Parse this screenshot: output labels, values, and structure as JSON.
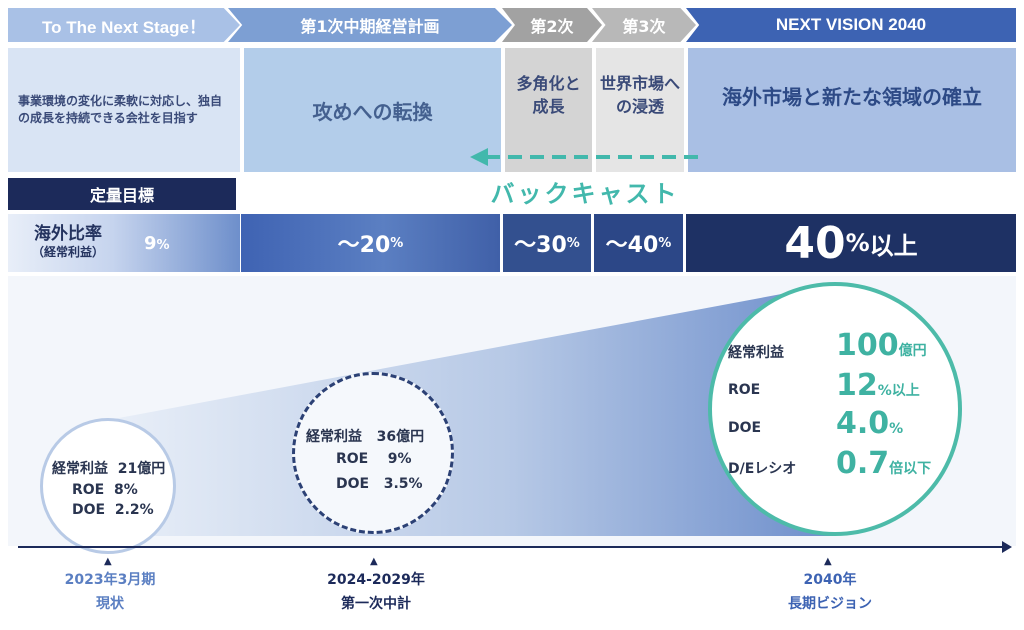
{
  "header": {
    "stage1": "To The Next Stage！",
    "stage2": "第1次中期経営計画",
    "stage3": "第2次",
    "stage4": "第3次",
    "stage5": "NEXT VISION 2040"
  },
  "descriptions": {
    "current": "事業環境の変化に柔軟に対応し、独自の成長を持続できる会社を目指す",
    "plan1": "攻めへの転換",
    "plan2": "多角化と成長",
    "plan3": "世界市場への浸透",
    "vision": "海外市場と新たな領域の確立"
  },
  "backcast": "バックキャスト",
  "quant_header": "定量目標",
  "overseas_ratio": {
    "label": "海外比率",
    "sub": "（経常利益）",
    "current": "9",
    "plan1": "～20",
    "plan2": "～30",
    "plan3": "～40",
    "vision": "40",
    "unit": "%",
    "vision_suffix": "以上"
  },
  "circles": {
    "current": {
      "profit_label": "経常利益",
      "profit": "21億円",
      "roe_label": "ROE",
      "roe": "8%",
      "doe_label": "DOE",
      "doe": "2.2%"
    },
    "plan1": {
      "profit_label": "経常利益",
      "profit": "36億円",
      "roe_label": "ROE",
      "roe": "9%",
      "doe_label": "DOE",
      "doe": "3.5%"
    },
    "vision": {
      "profit_label": "経常利益",
      "profit": "100",
      "profit_unit": "億円",
      "roe_label": "ROE",
      "roe": "12",
      "roe_unit": "%以上",
      "doe_label": "DOE",
      "doe": "4.0",
      "doe_unit": "%",
      "de_label": "D/Eレシオ",
      "de": "0.7",
      "de_unit": "倍以下"
    }
  },
  "timeline": {
    "t1_year": "2023年3月期",
    "t1_label": "現状",
    "t2_year": "2024-2029年",
    "t2_label": "第一次中計",
    "t3_year": "2040年",
    "t3_label": "長期ビジョン"
  },
  "colors": {
    "navy": "#1c2a5a",
    "teal": "#42b8ac",
    "blue": "#3d63b3"
  }
}
